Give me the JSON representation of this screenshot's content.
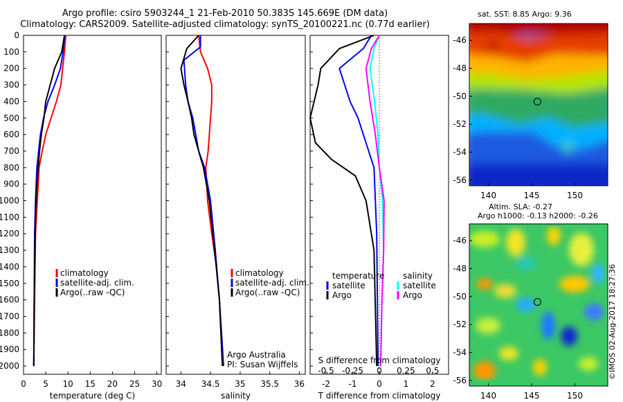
{
  "header": {
    "line1": "Argo profile: csiro 5903244_1 21-Feb-2010 50.383S 145.669E (DM data)",
    "line2": "Climatology: CARS2009. Satellite-adjusted climatology: synTS_20100221.nc (0.77d earlier)"
  },
  "maps": {
    "sst_title": "sat. SST: 8.85 Argo: 9.36",
    "alt_title_line1": "Altim. SLA: -0.27",
    "alt_title_line2": "Argo h1000: -0.13 h2000: -0.26",
    "lon_ticks": [
      "140",
      "145",
      "150"
    ],
    "lat_ticks": [
      "-46",
      "-48",
      "-50",
      "-52",
      "-54",
      "-56"
    ],
    "float_lon": 145.669,
    "float_lat": -50.383
  },
  "credit": "©IMOS 02-Aug-2017 18:27:36",
  "colors": {
    "climatology": "#ff0000",
    "satellite": "#0000ff",
    "argo": "#000000",
    "s_satellite": "#00ffff",
    "s_argo": "#ff00ff"
  },
  "chart_data": [
    {
      "type": "line",
      "xlabel": "temperature (deg C)",
      "ylabel": "",
      "xlim": [
        0,
        31
      ],
      "ylim": [
        0,
        2050
      ],
      "xticks": [
        "0",
        "5",
        "10",
        "15",
        "20",
        "25",
        "30"
      ],
      "yticks": [
        "0",
        "100",
        "200",
        "300",
        "400",
        "500",
        "600",
        "700",
        "800",
        "900",
        "1000",
        "1100",
        "1200",
        "1300",
        "1400",
        "1500",
        "1600",
        "1700",
        "1800",
        "1900",
        "2000"
      ],
      "legend": [
        "climatology",
        "satellite-adj. clim.",
        "Argo(..raw -QC)"
      ],
      "legend_placement": "bottom-center",
      "series": [
        {
          "name": "climatology",
          "color": "#ff0000",
          "x": [
            9.5,
            9.2,
            8.8,
            8.4,
            7.4,
            6.2,
            5.0,
            4.2,
            3.5,
            3.1,
            2.7,
            2.5,
            2.3
          ],
          "y": [
            0,
            100,
            200,
            300,
            400,
            500,
            600,
            700,
            800,
            1000,
            1200,
            1600,
            2000
          ]
        },
        {
          "name": "satellite-adj. clim.",
          "color": "#0000ff",
          "x": [
            9.3,
            8.9,
            8.3,
            7.0,
            5.5,
            4.5,
            3.8,
            3.4,
            3.0,
            2.7,
            2.5,
            2.3
          ],
          "y": [
            0,
            100,
            200,
            300,
            400,
            500,
            600,
            700,
            800,
            1000,
            1200,
            2000
          ]
        },
        {
          "name": "Argo(..raw -QC)",
          "color": "#000000",
          "x": [
            9.2,
            8.6,
            7.0,
            6.0,
            5.0,
            4.6,
            4.0,
            3.6,
            3.3,
            3.0,
            2.8,
            2.6,
            2.4,
            2.3
          ],
          "y": [
            0,
            100,
            200,
            300,
            400,
            500,
            600,
            700,
            800,
            900,
            1000,
            1200,
            1600,
            2000
          ]
        }
      ]
    },
    {
      "type": "line",
      "xlabel": "salinity",
      "ylabel": "",
      "xlim": [
        33.75,
        36.1
      ],
      "ylim": [
        0,
        2050
      ],
      "xticks": [
        "34",
        "34.5",
        "35",
        "35.5",
        "36"
      ],
      "legend": [
        "climatology",
        "satellite-adj. clim.",
        "Argo(..raw -QC)"
      ],
      "legend_placement": "bottom-center",
      "annotations": [
        "Argo Australia",
        "PI: Susan Wijffels"
      ],
      "series": [
        {
          "name": "climatology",
          "color": "#ff0000",
          "x": [
            34.3,
            34.33,
            34.45,
            34.52,
            34.52,
            34.5,
            34.48,
            34.46,
            34.42,
            34.45,
            34.52,
            34.6,
            34.65,
            34.7
          ],
          "y": [
            0,
            100,
            200,
            300,
            400,
            500,
            600,
            700,
            800,
            1000,
            1200,
            1400,
            1600,
            2000
          ]
        },
        {
          "name": "satellite-adj. clim.",
          "color": "#0000ff",
          "x": [
            34.33,
            34.33,
            34.05,
            34.08,
            34.12,
            34.2,
            34.25,
            34.3,
            34.4,
            34.5,
            34.58,
            34.65,
            34.72
          ],
          "y": [
            0,
            70,
            150,
            300,
            400,
            500,
            600,
            700,
            800,
            1000,
            1300,
            1600,
            2000
          ]
        },
        {
          "name": "Argo(..raw -QC)",
          "color": "#000000",
          "x": [
            34.3,
            34.1,
            34.0,
            34.05,
            34.12,
            34.18,
            34.22,
            34.3,
            34.38,
            34.48,
            34.57,
            34.65,
            34.7
          ],
          "y": [
            0,
            80,
            200,
            300,
            400,
            500,
            600,
            700,
            800,
            1000,
            1300,
            1600,
            2000
          ]
        }
      ]
    },
    {
      "type": "line",
      "xlabel": "T difference from climatology",
      "ylabel": "",
      "secondary_xlabel": "S difference from climatology",
      "xlim": [
        -2.6,
        2.6
      ],
      "ylim": [
        0,
        2050
      ],
      "xticks": [
        "-2",
        "-1",
        "0",
        "1",
        "2"
      ],
      "secondary_xticks": [
        "-0.5",
        "-0.25",
        "0",
        "0.25",
        "0.5"
      ],
      "legend_temperature_title": "temperature",
      "legend_salinity_title": "salinity",
      "legend_temperature": [
        "satellite",
        "Argo"
      ],
      "legend_salinity": [
        "satellite",
        "Argo"
      ],
      "series": [
        {
          "name": "satellite",
          "color": "#0000ff",
          "x": [
            -0.3,
            -0.6,
            -1.5,
            -1.3,
            -1.1,
            -0.8,
            -0.6,
            -0.4,
            -0.2,
            -0.1,
            -0.05
          ],
          "y": [
            0,
            80,
            200,
            300,
            400,
            500,
            600,
            700,
            800,
            1200,
            2000
          ]
        },
        {
          "name": "Argo",
          "color": "#000000",
          "x": [
            -0.2,
            -1.5,
            -2.2,
            -2.3,
            -2.6,
            -2.4,
            -1.8,
            -0.9,
            -0.5,
            -0.2,
            -0.1
          ],
          "y": [
            0,
            80,
            200,
            300,
            500,
            650,
            750,
            850,
            1000,
            1300,
            2000
          ]
        },
        {
          "name": "satellite",
          "color": "#00ffff",
          "x": [
            0.0,
            -0.2,
            -0.35,
            -0.18,
            -0.05,
            0.0,
            0.12,
            0.16,
            0.1,
            0.05
          ],
          "y": [
            0,
            80,
            200,
            400,
            600,
            800,
            1000,
            1300,
            1600,
            2000
          ]
        },
        {
          "name": "Argo",
          "color": "#ff00ff",
          "x": [
            0.0,
            -0.3,
            -0.5,
            -0.35,
            -0.15,
            0.0,
            0.18,
            0.16,
            0.1,
            0.05
          ],
          "y": [
            0,
            80,
            200,
            400,
            600,
            800,
            1000,
            1300,
            1600,
            2000
          ]
        }
      ]
    }
  ]
}
